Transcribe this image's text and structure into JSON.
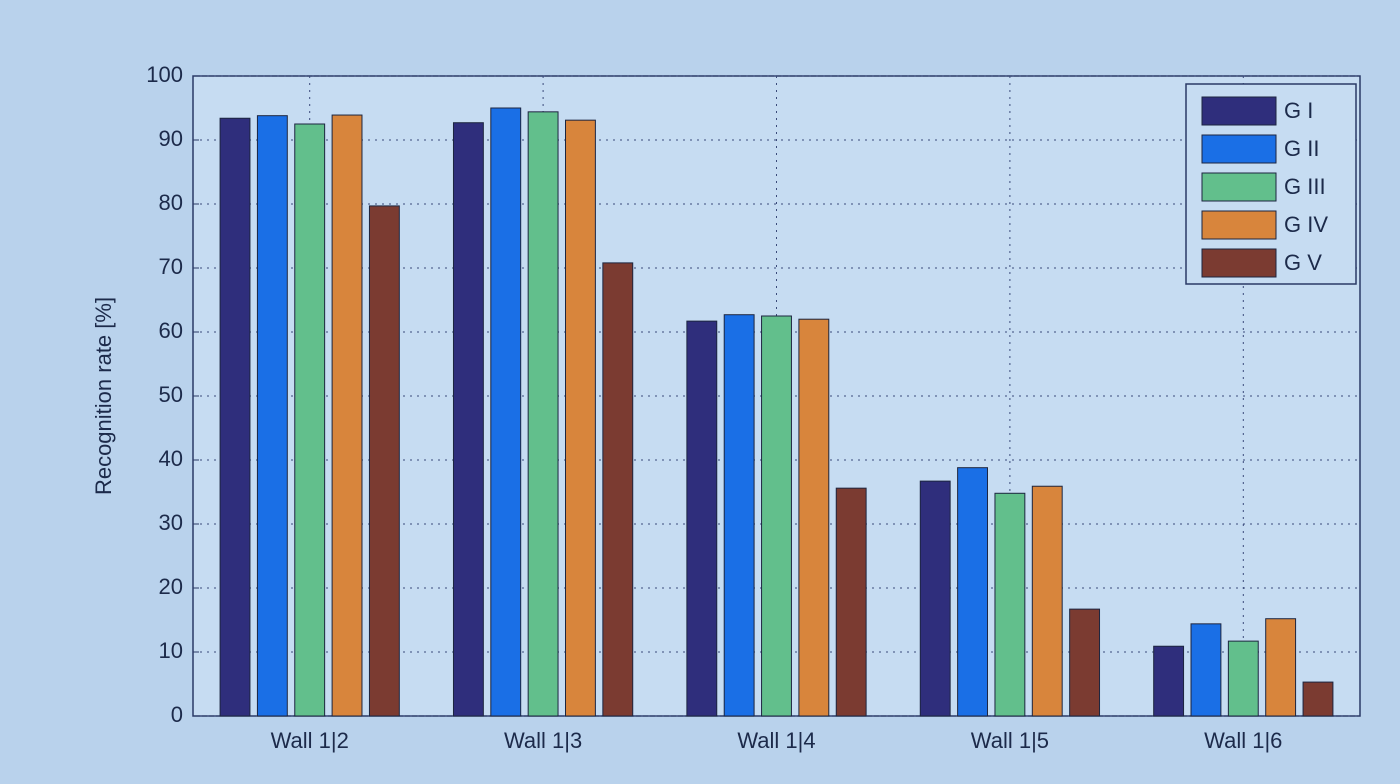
{
  "chart_data": {
    "type": "bar",
    "y_label": "Recognition rate [%]",
    "categories": [
      "Wall 1|2",
      "Wall 1|3",
      "Wall 1|4",
      "Wall 1|5",
      "Wall 1|6"
    ],
    "series": [
      {
        "name": "G I",
        "color": "#2f2e7c",
        "values": [
          93.4,
          92.7,
          61.7,
          36.7,
          10.9
        ]
      },
      {
        "name": "G II",
        "color": "#1a6fe6",
        "values": [
          93.8,
          95,
          62.7,
          38.8,
          14.4
        ]
      },
      {
        "name": "G III",
        "color": "#62bf8c",
        "values": [
          92.5,
          94.4,
          62.5,
          34.8,
          11.7
        ]
      },
      {
        "name": "G IV",
        "color": "#d8853c",
        "values": [
          93.9,
          93.1,
          62,
          35.9,
          15.2
        ]
      },
      {
        "name": "G V",
        "color": "#7b3b31",
        "values": [
          79.7,
          70.8,
          35.6,
          16.7,
          5.3
        ]
      }
    ],
    "ylim": [
      0,
      100
    ],
    "yticks": [
      0,
      10,
      20,
      30,
      40,
      50,
      60,
      70,
      80,
      90,
      100
    ],
    "grid": true,
    "legend": "upper-right"
  }
}
